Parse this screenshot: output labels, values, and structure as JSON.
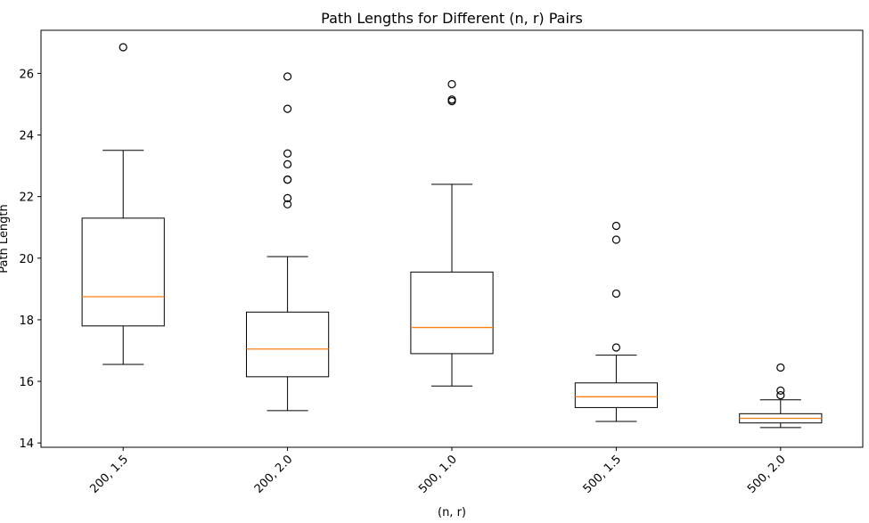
{
  "chart_data": {
    "type": "box",
    "title": "Path Lengths for Different (n, r) Pairs",
    "xlabel": "(n, r)",
    "ylabel": "Path Length",
    "ylim": [
      13.86,
      27.4
    ],
    "yticks": [
      14,
      16,
      18,
      20,
      22,
      24,
      26
    ],
    "categories": [
      "200, 1.5",
      "200, 2.0",
      "500, 1.0",
      "500, 1.5",
      "500, 2.0"
    ],
    "boxes": [
      {
        "category": "200, 1.5",
        "whisker_low": 16.55,
        "q1": 17.8,
        "median": 18.75,
        "q3": 21.3,
        "whisker_high": 23.5,
        "outliers": [
          26.85
        ]
      },
      {
        "category": "200, 2.0",
        "whisker_low": 15.05,
        "q1": 16.15,
        "median": 17.05,
        "q3": 18.25,
        "whisker_high": 20.05,
        "outliers": [
          21.75,
          21.95,
          22.55,
          22.55,
          23.05,
          23.4,
          24.85,
          25.9
        ]
      },
      {
        "category": "500, 1.0",
        "whisker_low": 15.85,
        "q1": 16.9,
        "median": 17.75,
        "q3": 19.55,
        "whisker_high": 22.4,
        "outliers": [
          25.1,
          25.15,
          25.65
        ]
      },
      {
        "category": "500, 1.5",
        "whisker_low": 14.7,
        "q1": 15.15,
        "median": 15.5,
        "q3": 15.95,
        "whisker_high": 16.85,
        "outliers": [
          17.1,
          18.85,
          20.6,
          21.05
        ]
      },
      {
        "category": "500, 2.0",
        "whisker_low": 14.5,
        "q1": 14.65,
        "median": 14.8,
        "q3": 14.95,
        "whisker_high": 15.4,
        "outliers": [
          15.55,
          15.7,
          16.45
        ]
      }
    ],
    "box_color": "#000000",
    "median_color": "#ff7f0e",
    "grid": false,
    "legend": false
  }
}
